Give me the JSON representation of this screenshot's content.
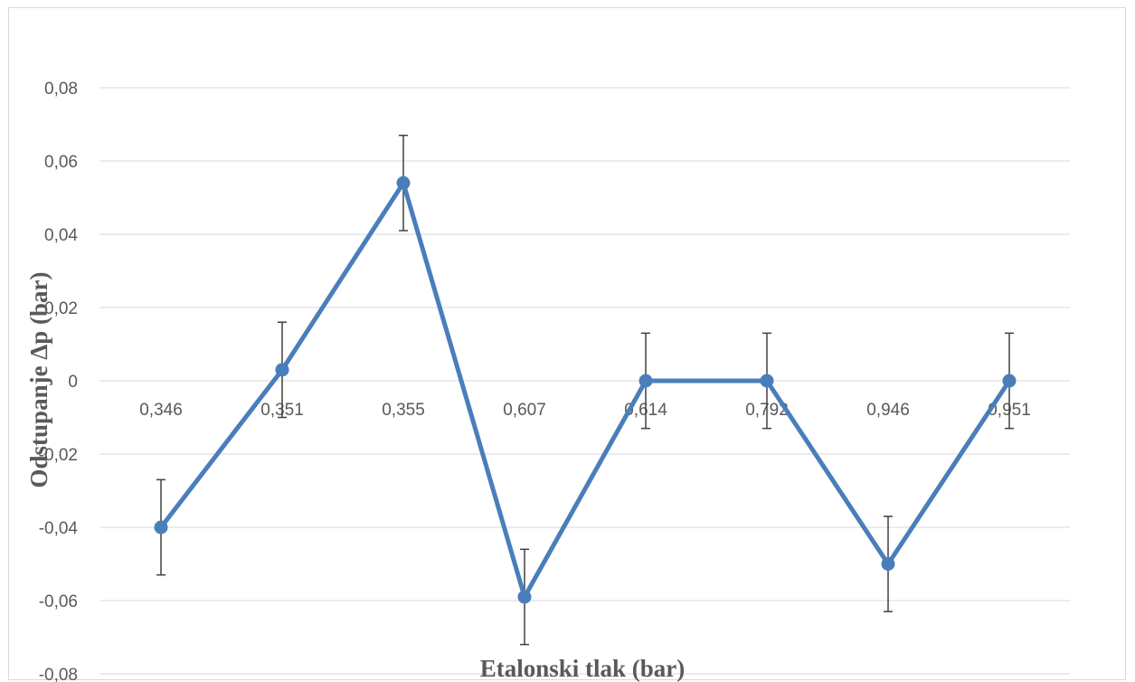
{
  "chart_data": {
    "type": "line",
    "title": "",
    "xlabel": "Etalonski tlak (bar)",
    "ylabel": "Odstupanje Δp (bar)",
    "categories": [
      "0,346",
      "0,351",
      "0,355",
      "0,607",
      "0,614",
      "0,792",
      "0,946",
      "0,951"
    ],
    "series": [
      {
        "values": [
          -0.04,
          0.003,
          0.054,
          -0.059,
          0.0,
          0.0,
          -0.05,
          0.0
        ],
        "error": 0.013,
        "color": "#4a7ebb"
      }
    ],
    "ylim": [
      -0.08,
      0.08
    ],
    "yticks": [
      0.08,
      0.06,
      0.04,
      0.02,
      0,
      -0.02,
      -0.04,
      -0.06,
      -0.08
    ],
    "ytick_labels": [
      "0,08",
      "0,06",
      "0,04",
      "0,02",
      "0",
      "-0,02",
      "-0,04",
      "-0,06",
      "-0,08"
    ],
    "grid": true,
    "markers": true,
    "error_bars": true,
    "legend": false
  }
}
